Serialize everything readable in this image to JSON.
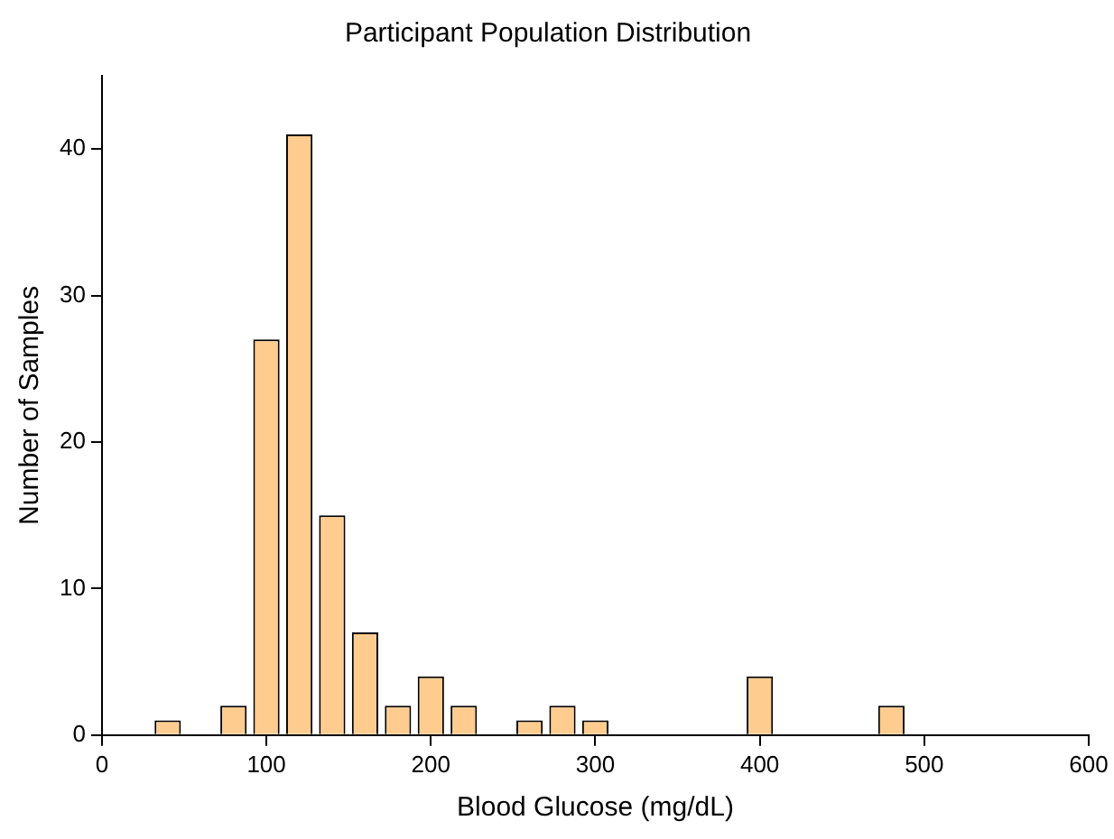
{
  "chart_data": {
    "type": "histogram",
    "title": "Participant Population Distribution",
    "xlabel": "Blood Glucose (mg/dL)",
    "ylabel": "Number of Samples",
    "bins": [
      30,
      50,
      70,
      90,
      110,
      130,
      150,
      170,
      190,
      210,
      230,
      250,
      270,
      290,
      310,
      330,
      350,
      370,
      390,
      410,
      430,
      450,
      470,
      490
    ],
    "values": [
      1,
      0,
      2,
      27,
      41,
      15,
      7,
      2,
      4,
      2,
      0,
      1,
      2,
      1,
      0,
      0,
      0,
      0,
      4,
      0,
      0,
      0,
      2
    ],
    "color": "#ffcc8f",
    "xlim": [
      0,
      600
    ],
    "xticks": [
      0,
      100,
      200,
      300,
      400,
      500,
      600
    ],
    "ylim": [
      0,
      45
    ],
    "yticks": [
      0,
      10,
      20,
      30,
      40
    ],
    "grid": false,
    "legend": false
  }
}
